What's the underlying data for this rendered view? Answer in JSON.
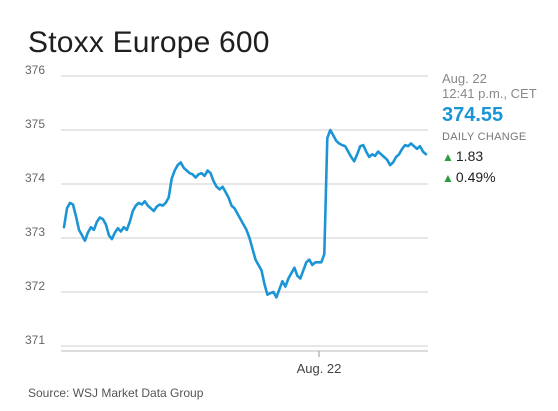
{
  "chart_data": {
    "type": "line",
    "title": "Stoxx Europe 600",
    "ylim": [
      371,
      376
    ],
    "yticks": [
      "376",
      "375",
      "374",
      "373",
      "372",
      "371"
    ],
    "xtick_label": "Aug. 22",
    "grid": true,
    "series": [
      {
        "color": "#1b95d6",
        "values": [
          373.2,
          373.55,
          373.65,
          373.62,
          373.4,
          373.15,
          373.05,
          372.95,
          373.1,
          373.2,
          373.15,
          373.3,
          373.38,
          373.35,
          373.25,
          373.05,
          372.98,
          373.1,
          373.18,
          373.12,
          373.2,
          373.15,
          373.3,
          373.5,
          373.6,
          373.65,
          373.62,
          373.68,
          373.6,
          373.55,
          373.5,
          373.58,
          373.62,
          373.6,
          373.65,
          373.75,
          374.1,
          374.25,
          374.35,
          374.4,
          374.3,
          374.25,
          374.2,
          374.18,
          374.12,
          374.18,
          374.2,
          374.15,
          374.25,
          374.2,
          374.05,
          373.95,
          373.9,
          373.95,
          373.85,
          373.75,
          373.6,
          373.55,
          373.45,
          373.35,
          373.25,
          373.15,
          373.0,
          372.8,
          372.6,
          372.5,
          372.4,
          372.15,
          371.95,
          371.98,
          372.0,
          371.9,
          372.05,
          372.2,
          372.1,
          372.25,
          372.35,
          372.45,
          372.3,
          372.25,
          372.4,
          372.55,
          372.6,
          372.5,
          372.55,
          372.55,
          372.55,
          372.7,
          374.85,
          375.0,
          374.9,
          374.8,
          374.75,
          374.72,
          374.7,
          374.6,
          374.5,
          374.42,
          374.55,
          374.7,
          374.72,
          374.6,
          374.5,
          374.55,
          374.52,
          374.6,
          374.55,
          374.5,
          374.45,
          374.35,
          374.4,
          374.5,
          374.55,
          374.65,
          374.72,
          374.7,
          374.75,
          374.7,
          374.65,
          374.7,
          374.6,
          374.55
        ]
      }
    ],
    "latest": {
      "date": "Aug. 22",
      "time": "12:41 p.m., CET",
      "price": "374.55",
      "daily_change_label": "DAILY CHANGE",
      "change_points": "1.83",
      "change_percent": "0.49%"
    },
    "source": "Source: WSJ Market Data Group"
  }
}
